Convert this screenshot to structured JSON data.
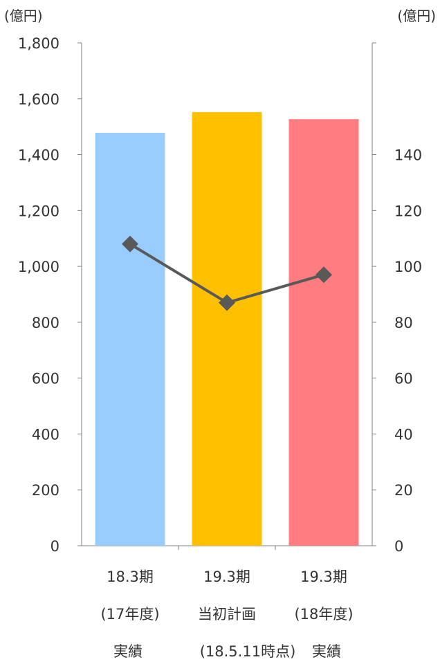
{
  "chart_data": {
    "type": "bar",
    "title": "",
    "left_axis": {
      "unit_label": "(億円)",
      "ylim": [
        0,
        1800
      ],
      "ticks": [
        "0",
        "200",
        "400",
        "600",
        "800",
        "1,000",
        "1,200",
        "1,400",
        "1,600",
        "1,800"
      ]
    },
    "right_axis": {
      "unit_label": "(億円)",
      "ylim": [
        0,
        180
      ],
      "ticks": [
        "0",
        "20",
        "40",
        "60",
        "80",
        "100",
        "120",
        "140"
      ]
    },
    "categories": [
      {
        "line1": "18.3期",
        "line2": "(17年度)",
        "line3": "実績"
      },
      {
        "line1": "19.3期",
        "line2": "当初計画",
        "line3": "(18.5.11時点)"
      },
      {
        "line1": "19.3期",
        "line2": "(18年度)",
        "line3": "実績"
      }
    ],
    "series": [
      {
        "type": "bar",
        "axis": "left",
        "values": [
          1478,
          1552,
          1527
        ],
        "colors": [
          "#99CCFF",
          "#FFC000",
          "#FF7C80"
        ]
      },
      {
        "type": "line",
        "axis": "right",
        "marker": "diamond",
        "values": [
          108,
          87,
          97
        ],
        "color": "#595959"
      }
    ],
    "grid": false
  }
}
